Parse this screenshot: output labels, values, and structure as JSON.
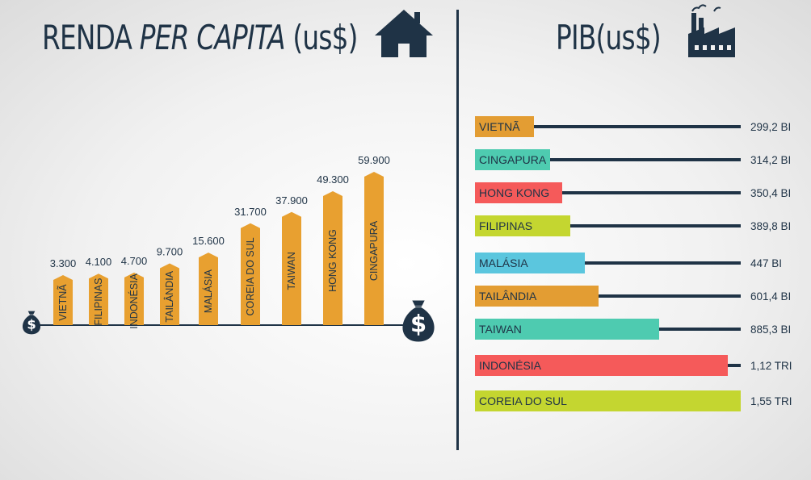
{
  "left_title": {
    "part1": "RENDA ",
    "italic": "PER CAPITA",
    "part2": " (us$)"
  },
  "right_title": "PIB(us$)",
  "icons": {
    "left": "house-icon",
    "right": "factory-icon",
    "small_bag": "money-bag-icon",
    "big_bag": "money-bag-icon"
  },
  "colors": {
    "navy": "#1f3346",
    "orange": "#e8a030",
    "teal": "#4ecbb0",
    "red": "#f55a5a",
    "lime": "#c4d630",
    "blue": "#5bc6de",
    "orange_gdp": "#e39d33"
  },
  "chart_data": [
    {
      "type": "bar",
      "categories": [
        "VIETNÃ",
        "FILIPINAS",
        "INDONÉSIA",
        "TAILÂNDIA",
        "MALÁSIA",
        "COREIA DO SUL",
        "TAIWAN",
        "HONG KONG",
        "CINGAPURA"
      ],
      "values": [
        3300,
        4100,
        4700,
        9700,
        15600,
        31700,
        37900,
        49300,
        59900
      ],
      "value_labels": [
        "3.300",
        "4.100",
        "4.700",
        "9.700",
        "15.600",
        "31.700",
        "37.900",
        "49.300",
        "59.900"
      ]
    },
    {
      "type": "bar",
      "orientation": "horizontal",
      "categories": [
        "VIETNÃ",
        "CINGAPURA",
        "HONG KONG",
        "FILIPINAS",
        "MALÁSIA",
        "TAILÂNDIA",
        "TAIWAN",
        "INDONÉSIA",
        "COREIA DO SUL"
      ],
      "values": [
        299.2,
        314.2,
        350.4,
        389.8,
        447,
        601.4,
        885.3,
        1120,
        1550
      ],
      "unit": "bilhões",
      "value_labels": [
        "299,2 BI",
        "314,2 BI",
        "350,4 BI",
        "389,8 BI",
        "447 BI",
        "601,4 BI",
        "885,3 BI",
        "1,12 TRI",
        "1,55 TRI"
      ],
      "bar_colors": [
        "#e39d33",
        "#4ecbb0",
        "#f55a5a",
        "#c4d630",
        "#5bc6de",
        "#e39d33",
        "#4ecbb0",
        "#f55a5a",
        "#c4d630"
      ]
    }
  ]
}
